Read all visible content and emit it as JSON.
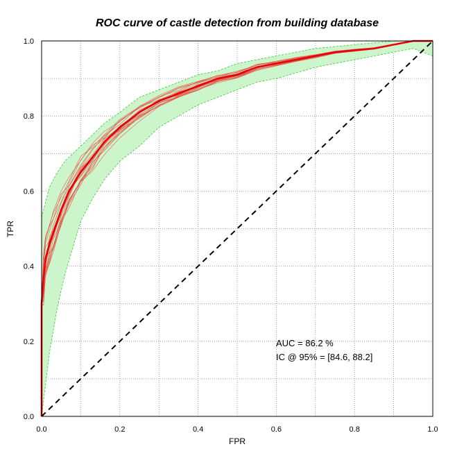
{
  "chart_data": {
    "type": "line",
    "title": "ROC curve of castle detection from building database",
    "xlabel": "FPR",
    "ylabel": "TPR",
    "xlim": [
      0,
      1
    ],
    "ylim": [
      0,
      1
    ],
    "x_ticks": [
      "0.0",
      "0.2",
      "0.4",
      "0.6",
      "0.8",
      "1.0"
    ],
    "y_ticks": [
      "0.0",
      "0.2",
      "0.4",
      "0.6",
      "0.8",
      "1.0"
    ],
    "grid": true,
    "annotations": [
      "AUC = 86.2 %",
      "IC @ 95% = [84.6, 88.2]"
    ],
    "colors": {
      "mean": "#e8000b",
      "bootstrap": "#e05a4a",
      "band_fill": "#ccf5cc",
      "band_edge": "#33cc33",
      "chance": "#000000"
    },
    "series": [
      {
        "role": "mean",
        "x": [
          0,
          0.0,
          0.005,
          0.01,
          0.02,
          0.03,
          0.05,
          0.07,
          0.1,
          0.13,
          0.16,
          0.2,
          0.25,
          0.3,
          0.35,
          0.4,
          0.45,
          0.5,
          0.55,
          0.6,
          0.65,
          0.7,
          0.75,
          0.8,
          0.85,
          0.9,
          0.95,
          1.0
        ],
        "y": [
          0,
          0.3,
          0.37,
          0.42,
          0.46,
          0.49,
          0.55,
          0.6,
          0.65,
          0.69,
          0.73,
          0.77,
          0.81,
          0.84,
          0.86,
          0.88,
          0.9,
          0.91,
          0.93,
          0.94,
          0.95,
          0.96,
          0.97,
          0.975,
          0.98,
          0.99,
          1.0,
          1.0
        ]
      },
      {
        "role": "ci_upper",
        "x": [
          0,
          0.01,
          0.02,
          0.04,
          0.06,
          0.08,
          0.1,
          0.13,
          0.16,
          0.2,
          0.25,
          0.3,
          0.35,
          0.4,
          0.45,
          0.5,
          0.55,
          0.6,
          0.65,
          0.7,
          0.75,
          0.8,
          0.85,
          0.9,
          0.95,
          1.0
        ],
        "y": [
          0.53,
          0.57,
          0.61,
          0.65,
          0.68,
          0.7,
          0.72,
          0.75,
          0.78,
          0.81,
          0.85,
          0.87,
          0.89,
          0.91,
          0.92,
          0.94,
          0.95,
          0.96,
          0.97,
          0.98,
          0.985,
          0.99,
          0.995,
          1.0,
          1.0,
          1.0
        ]
      },
      {
        "role": "ci_lower",
        "x": [
          0,
          0.02,
          0.04,
          0.06,
          0.08,
          0.1,
          0.13,
          0.16,
          0.2,
          0.25,
          0.3,
          0.35,
          0.4,
          0.45,
          0.5,
          0.55,
          0.6,
          0.65,
          0.7,
          0.75,
          0.8,
          0.85,
          0.9,
          0.95,
          1.0
        ],
        "y": [
          0,
          0.17,
          0.29,
          0.38,
          0.45,
          0.52,
          0.58,
          0.63,
          0.68,
          0.72,
          0.77,
          0.8,
          0.83,
          0.85,
          0.87,
          0.89,
          0.9,
          0.915,
          0.93,
          0.94,
          0.95,
          0.96,
          0.97,
          0.98,
          0.96
        ]
      },
      {
        "role": "chance",
        "x": [
          0,
          1
        ],
        "y": [
          0,
          1
        ]
      }
    ]
  }
}
